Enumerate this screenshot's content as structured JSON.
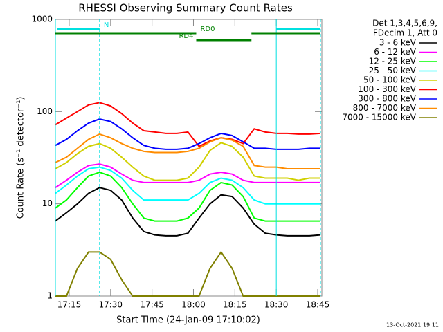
{
  "chart_data": {
    "type": "line",
    "title": "RHESSI Observing Summary Count Rates",
    "xlabel": "Start Time (24-Jan-09 17:10:02)",
    "ylabel": "Count Rate (s⁻¹ detector⁻¹)",
    "legend_header": [
      "Det 1,3,4,5,6,9,",
      "FDecim 1, Att 0"
    ],
    "footer": "13-Oct-2021 19:11",
    "yscale": "log",
    "ylim": [
      1,
      1000
    ],
    "yticks": [
      1,
      10,
      100,
      1000
    ],
    "xlim": [
      0,
      96.5
    ],
    "xticks": [
      {
        "value": 5,
        "label": "17:15"
      },
      {
        "value": 20,
        "label": "17:30"
      },
      {
        "value": 35,
        "label": "17:45"
      },
      {
        "value": 50,
        "label": "18:00"
      },
      {
        "value": 65,
        "label": "18:15"
      },
      {
        "value": 80,
        "label": "18:30"
      },
      {
        "value": 95,
        "label": "18:45"
      }
    ],
    "x": [
      0,
      4,
      8,
      12,
      16,
      20,
      24,
      28,
      32,
      36,
      40,
      44,
      48,
      52,
      56,
      60,
      64,
      68,
      72,
      76,
      80,
      84,
      88,
      92,
      96
    ],
    "series": [
      {
        "name": "3 - 6 keV",
        "color": "#000000",
        "values": [
          6.5,
          8,
          10,
          13,
          15,
          14,
          11,
          7,
          5,
          4.6,
          4.5,
          4.5,
          4.8,
          7,
          10,
          12.5,
          12,
          9,
          6,
          4.8,
          4.6,
          4.5,
          4.5,
          4.5,
          4.6
        ]
      },
      {
        "name": "6 - 12 keV",
        "color": "#ff00ff",
        "values": [
          15,
          18,
          22,
          26,
          27,
          25,
          21,
          18,
          17,
          17,
          17,
          17,
          17,
          18,
          21,
          22,
          21,
          18,
          17,
          17,
          17,
          17,
          17,
          17,
          17
        ]
      },
      {
        "name": "12 - 25 keV",
        "color": "#00ff00",
        "values": [
          9,
          11,
          15,
          20,
          22,
          20,
          15,
          10,
          7,
          6.5,
          6.5,
          6.5,
          7,
          9,
          14,
          17,
          16,
          12,
          7,
          6.5,
          6.5,
          6.5,
          6.5,
          6.5,
          6.5
        ]
      },
      {
        "name": "25 - 50 keV",
        "color": "#00ffff",
        "values": [
          13,
          16,
          20,
          24,
          25,
          23,
          19,
          14,
          11,
          11,
          11,
          11,
          11,
          13,
          17,
          19,
          18,
          15,
          11,
          10,
          10,
          10,
          10,
          10,
          10
        ]
      },
      {
        "name": "50 - 100 keV",
        "color": "#d0d000",
        "values": [
          24,
          28,
          35,
          42,
          45,
          40,
          32,
          25,
          20,
          18,
          18,
          18,
          19,
          25,
          38,
          46,
          42,
          32,
          20,
          19,
          19,
          19,
          18,
          19,
          19
        ]
      },
      {
        "name": "100 - 300 keV",
        "color": "#ff0000",
        "values": [
          72,
          85,
          100,
          118,
          125,
          115,
          95,
          75,
          62,
          60,
          58,
          58,
          60,
          42,
          48,
          52,
          50,
          45,
          65,
          60,
          58,
          58,
          57,
          57,
          58
        ]
      },
      {
        "name": "300 - 800 keV",
        "color": "#0000ff",
        "values": [
          43,
          50,
          62,
          75,
          83,
          78,
          65,
          52,
          43,
          40,
          39,
          39,
          40,
          45,
          52,
          58,
          55,
          47,
          40,
          40,
          39,
          39,
          39,
          40,
          40
        ]
      },
      {
        "name": "800 - 7000 keV",
        "color": "#ff8c00",
        "values": [
          28,
          32,
          40,
          50,
          57,
          52,
          45,
          40,
          37,
          36,
          36,
          36,
          37,
          40,
          47,
          52,
          49,
          42,
          26,
          25,
          25,
          24,
          24,
          24,
          24
        ]
      },
      {
        "name": "7000 - 15000 keV",
        "color": "#808000",
        "values": [
          1,
          1,
          2,
          3,
          3,
          2.5,
          1.5,
          1,
          1,
          1,
          1,
          1,
          1,
          1,
          2,
          3,
          2,
          1,
          1,
          1,
          1,
          1,
          1,
          1,
          1
        ]
      }
    ],
    "vlines": [
      {
        "x": 0,
        "style": "solid"
      },
      {
        "x": 16,
        "style": "dashed"
      },
      {
        "x": 80,
        "style": "solid"
      },
      {
        "x": 96,
        "style": "dashed"
      }
    ],
    "vline_color": "#00e0e0",
    "flag_rows": [
      [
        {
          "label": "N",
          "start": 0.5,
          "end": 16,
          "color": "#00e0e0"
        },
        {
          "start": 80,
          "end": 96,
          "color": "#00e0e0"
        }
      ],
      [
        {
          "label": "RD0",
          "start": 0,
          "end": 51,
          "color": "#008000"
        },
        {
          "start": 71,
          "end": 96,
          "color": "#008000"
        }
      ],
      [
        {
          "label": "RD4",
          "start": 51,
          "end": 71,
          "color": "#008000"
        }
      ]
    ]
  }
}
